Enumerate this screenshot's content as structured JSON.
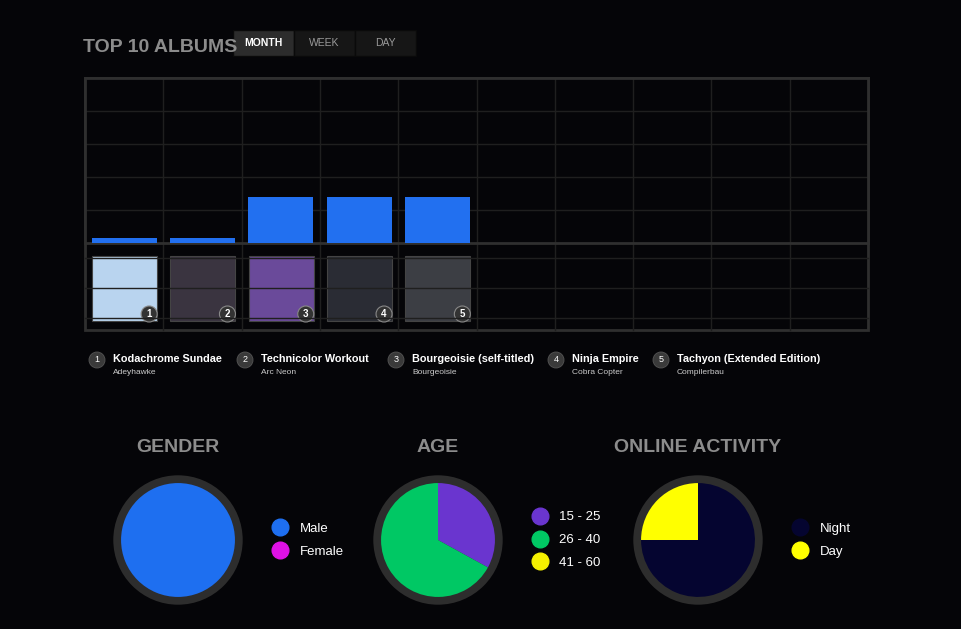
{
  "header": {
    "title": "TOP 10 ALBUMS",
    "tabs": [
      "MONTH",
      "WEEK",
      "DAY"
    ],
    "active_tab": "MONTH"
  },
  "albums": [
    {
      "rank": 1,
      "title": "Kodachrome Sundae",
      "artist": "Adeyhawke"
    },
    {
      "rank": 2,
      "title": "Technicolor Workout",
      "artist": "Arc Neon"
    },
    {
      "rank": 3,
      "title": "Bourgeoisie (self-titled)",
      "artist": "Bourgeoisie"
    },
    {
      "rank": 4,
      "title": "Ninja Empire",
      "artist": "Cobra Copter"
    },
    {
      "rank": 5,
      "title": "Tachyon (Extended Edition)",
      "artist": "Compilerbau"
    }
  ],
  "chart_data": [
    {
      "type": "bar",
      "categories": [
        "1",
        "2",
        "3",
        "4",
        "5",
        null,
        null,
        null,
        null,
        null
      ],
      "values": [
        3,
        3,
        28,
        28,
        28,
        null,
        null,
        null,
        null,
        null
      ],
      "color": "#2270f0",
      "ylim": [
        0,
        100
      ],
      "yticks": [
        0,
        20,
        40,
        60,
        80,
        100
      ],
      "grid": true,
      "tick_labels": false
    },
    {
      "type": "pie",
      "title": "GENDER",
      "categories": [
        "Male",
        "Female"
      ],
      "values": [
        100,
        0
      ],
      "colors": [
        "#1e6ff0",
        "#e011e6"
      ],
      "legend": "center left"
    },
    {
      "type": "pie",
      "title": "AGE",
      "categories": [
        "15 - 25",
        "26 - 40",
        "41 - 60"
      ],
      "values": [
        33,
        67,
        0
      ],
      "colors": [
        "#6a35cf",
        "#00c864",
        "#f5f000"
      ],
      "legend": "center left"
    },
    {
      "type": "pie",
      "title": "ONLINE ACTIVITY",
      "categories": [
        "Night",
        "Day"
      ],
      "values": [
        75,
        25
      ],
      "colors": [
        "#050530",
        "#ffff00"
      ],
      "legend": "center left"
    }
  ]
}
